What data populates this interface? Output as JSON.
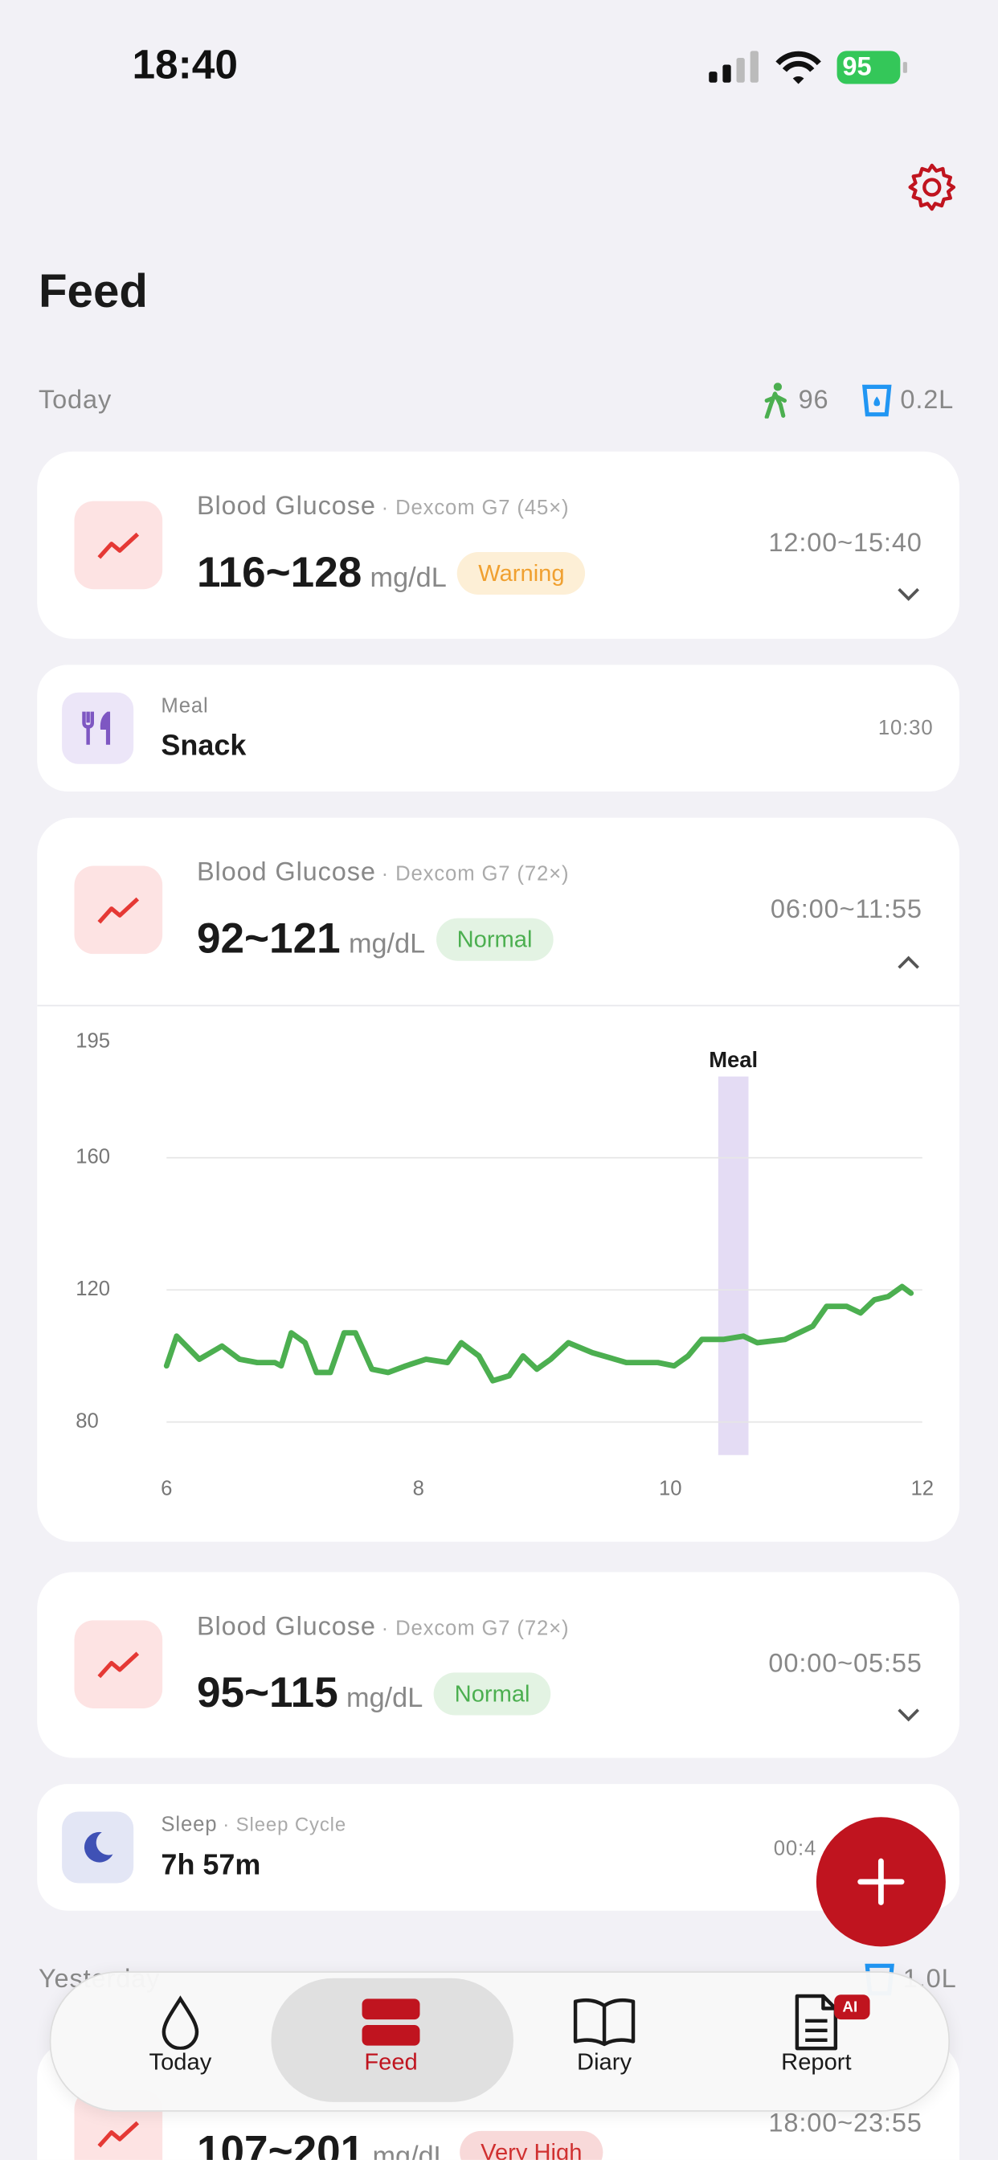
{
  "status_bar": {
    "time": "18:40",
    "battery": "95"
  },
  "header": {
    "title": "Feed"
  },
  "today": {
    "label": "Today",
    "steps": "96",
    "water": "0.2L"
  },
  "cards": [
    {
      "type": "Blood Glucose",
      "source": "· Dexcom G7 (45×)",
      "value": "116~128",
      "unit": "mg/dL",
      "status": "Warning",
      "time": "12:00~15:40"
    },
    {
      "type": "Meal",
      "value": "Snack",
      "time": "10:30"
    },
    {
      "type": "Blood Glucose",
      "source": "· Dexcom G7 (72×)",
      "value": "92~121",
      "unit": "mg/dL",
      "status": "Normal",
      "time": "06:00~11:55"
    },
    {
      "type": "Blood Glucose",
      "source": "· Dexcom G7 (72×)",
      "value": "95~115",
      "unit": "mg/dL",
      "status": "Normal",
      "time": "00:00~05:55"
    },
    {
      "type": "Sleep",
      "source": "· Sleep Cycle",
      "value": "7h 57m",
      "time": "00:4"
    }
  ],
  "yesterday": {
    "label": "Yesterday",
    "water": "1.0L",
    "card": {
      "value": "107~201",
      "unit": "mg/dL",
      "status": "Very High",
      "time": "18:00~23:55"
    }
  },
  "nav": {
    "items": [
      "Today",
      "Feed",
      "Diary",
      "Report"
    ],
    "active": "Feed",
    "badge": "AI"
  },
  "chart_data": {
    "type": "line",
    "x": [
      6.0,
      6.08,
      6.26,
      6.44,
      6.58,
      6.72,
      6.86,
      6.91,
      6.99,
      7.1,
      7.19,
      7.3,
      7.41,
      7.5,
      7.63,
      7.76,
      7.9,
      8.06,
      8.23,
      8.34,
      8.48,
      8.59,
      8.72,
      8.83,
      8.94,
      9.05,
      9.19,
      9.38,
      9.65,
      9.9,
      10.03,
      10.14,
      10.25,
      10.42,
      10.58,
      10.69,
      10.91,
      11.13,
      11.24,
      11.4,
      11.51,
      11.62,
      11.73,
      11.84,
      11.91
    ],
    "series": [
      {
        "name": "Blood Glucose",
        "color": "#4caf50",
        "values": [
          97,
          106,
          99,
          103,
          99,
          98,
          98,
          97,
          107,
          104,
          95,
          95,
          107,
          107,
          96,
          95,
          97,
          99,
          98,
          104,
          100,
          92.5,
          94,
          100,
          96,
          99,
          104,
          101,
          98,
          98,
          97,
          100,
          105,
          105,
          106,
          104,
          105,
          109,
          115,
          115,
          113,
          117,
          118,
          121,
          119
        ]
      }
    ],
    "xlim": [
      6,
      12
    ],
    "xticks": [
      6,
      8,
      10,
      12
    ],
    "ylim": [
      70,
      195
    ],
    "yticks": [
      80,
      120,
      160,
      195
    ],
    "grid": true,
    "annotations": [
      {
        "text": "Meal",
        "x": [
          10.38,
          10.62
        ],
        "color": "#e4dcf4"
      }
    ]
  }
}
